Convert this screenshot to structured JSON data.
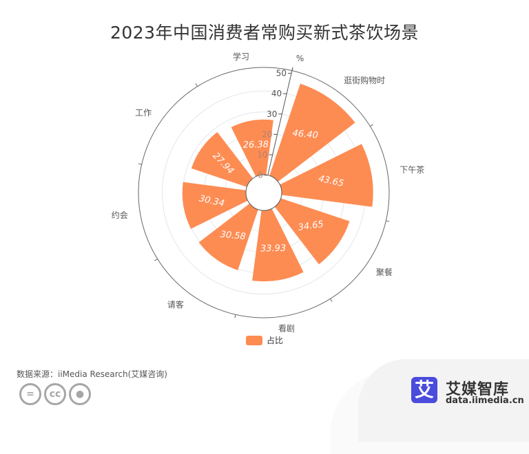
{
  "title": "2023年中国消费者常购买新式茶饮场景",
  "chart_data": {
    "type": "polar-bar",
    "title": "2023年中国消费者常购买新式茶饮场景",
    "categories": [
      "学习",
      "逛街购物时",
      "下午茶",
      "聚餐",
      "看剧",
      "请客",
      "约会",
      "工作"
    ],
    "series": [
      {
        "name": "占比",
        "values": [
          26.38,
          46.4,
          43.65,
          34.65,
          33.93,
          30.58,
          30.34,
          27.94
        ],
        "color": "#fd8c53"
      }
    ],
    "radial_axis": {
      "unit": "%",
      "min": 0,
      "max": 50,
      "ticks": [
        0,
        10,
        20,
        30,
        40,
        50
      ]
    },
    "value_labels": [
      "26.38",
      "46.40",
      "43.65",
      "34.65",
      "33.93",
      "30.58",
      "30.34",
      "27.94"
    ],
    "legend_position": "bottom"
  },
  "legend": {
    "label": "占比"
  },
  "source": "数据来源：iiMedia Research(艾媒咨询)",
  "license_icons": [
    "=",
    "cc",
    "person"
  ],
  "brand": {
    "logo_char": "艾",
    "name": "艾媒智库",
    "url": "data.iimedia.cn",
    "color": "#4b4bdc"
  }
}
